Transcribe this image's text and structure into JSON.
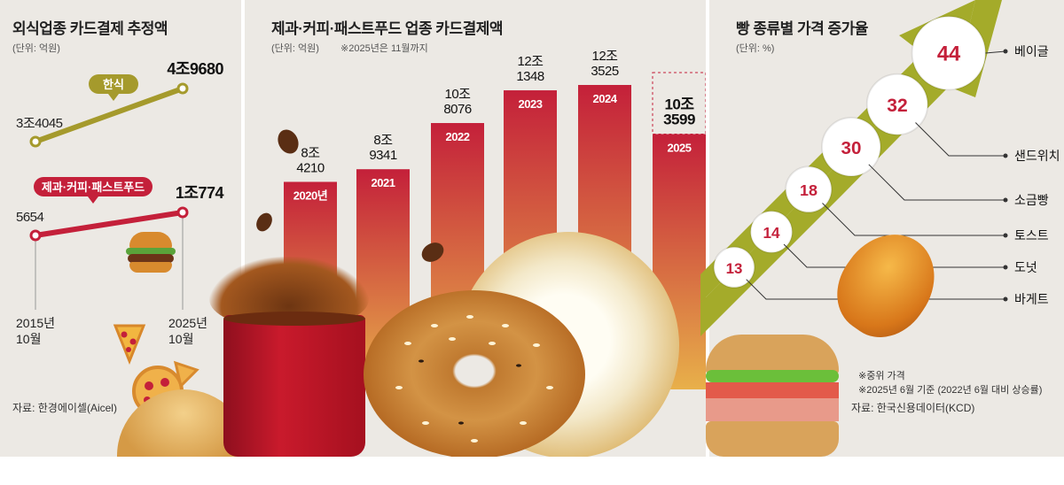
{
  "panel1": {
    "title": "외식업종 카드결제 추정액",
    "unit": "(단위: 억원)",
    "series": [
      {
        "name": "한식",
        "start_value": "3조4045",
        "end_value": "4조9680",
        "color": "#a59a2c"
      },
      {
        "name": "제과·커피·패스트푸드",
        "start_value": "5654",
        "end_value": "1조774",
        "color": "#c4203a"
      }
    ],
    "x_start": "2015년\n10월",
    "x_end": "2025년\n10월",
    "source": "자료: 한경에이셀(Aicel)"
  },
  "panel2": {
    "title": "제과·커피·패스트푸드 업종 카드결제액",
    "unit": "(단위: 억원)",
    "note": "※2025년은 11월까지",
    "bar_color_top": "#c4203a",
    "bar_color_bottom": "#e8b04a"
  },
  "panel3": {
    "title": "빵 종류별 가격 증가율",
    "unit": "(단위: %)",
    "arrow_color": "#a4ab2a",
    "notes": [
      "※중위 가격",
      "※2025년 6월 기준 (2022년 6월 대비 상승률)"
    ],
    "source": "자료: 한국신용데이터(KCD)"
  },
  "chart_data": [
    {
      "type": "line",
      "title": "외식업종 카드결제 추정액",
      "x": [
        "2015년 10월",
        "2025년 10월"
      ],
      "series": [
        {
          "name": "한식",
          "values": [
            34045,
            49680
          ],
          "labels": [
            "3조4045",
            "4조9680"
          ]
        },
        {
          "name": "제과·커피·패스트푸드",
          "values": [
            5654,
            10774
          ],
          "labels": [
            "5654",
            "1조774"
          ]
        }
      ]
    },
    {
      "type": "bar",
      "title": "제과·커피·패스트푸드 업종 카드결제액",
      "categories": [
        "2020년",
        "2021",
        "2022",
        "2023",
        "2024",
        "2025"
      ],
      "values": [
        84210,
        89341,
        108076,
        121348,
        123525,
        103599
      ],
      "labels": [
        "8조\n4210",
        "8조\n9341",
        "10조\n8076",
        "12조\n1348",
        "12조\n3525",
        "10조\n3599"
      ]
    },
    {
      "type": "bar",
      "title": "빵 종류별 가격 증가율",
      "categories": [
        "바게트",
        "도넛",
        "토스트",
        "소금빵",
        "샌드위치",
        "베이글"
      ],
      "values": [
        13,
        14,
        18,
        30,
        32,
        44
      ]
    }
  ]
}
